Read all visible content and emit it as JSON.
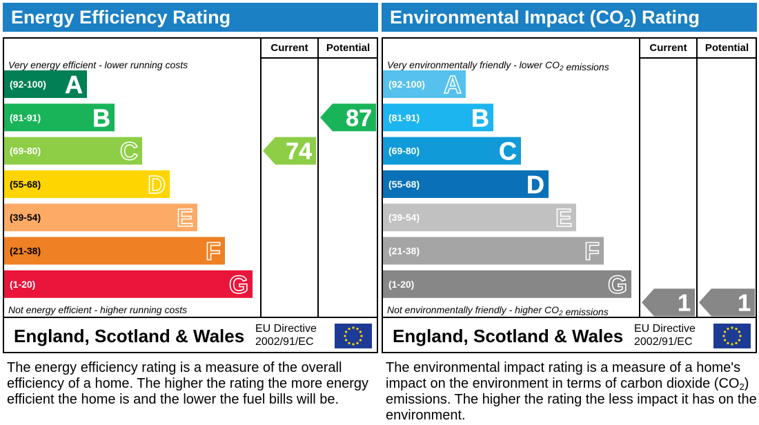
{
  "chart_data": [
    {
      "type": "bar",
      "title": "Energy Efficiency Rating",
      "columns": [
        "Current",
        "Potential"
      ],
      "top_note": "Very energy efficient - lower running costs",
      "bottom_note": "Not energy efficient - higher running costs",
      "categories": [
        "A",
        "B",
        "C",
        "D",
        "E",
        "F",
        "G"
      ],
      "ranges": [
        "(92-100)",
        "(81-91)",
        "(69-80)",
        "(55-68)",
        "(39-54)",
        "(21-38)",
        "(1-20)"
      ],
      "colors": [
        "#008054",
        "#19b459",
        "#8dce46",
        "#ffd500",
        "#fcaa65",
        "#ef8023",
        "#e9153b"
      ],
      "letter_style": [
        "solid",
        "solid",
        "outline",
        "outline",
        "outline",
        "outline",
        "outline"
      ],
      "current": {
        "value": 74,
        "band": "C"
      },
      "potential": {
        "value": 87,
        "band": "B"
      },
      "footer_label": "England, Scotland & Wales",
      "directive_line1": "EU Directive",
      "directive_line2": "2002/91/EC",
      "description": "The energy efficiency rating is a measure of the overall efficiency of a home. The higher the rating the more energy efficient the home is and the lower the fuel bills will be."
    },
    {
      "type": "bar",
      "title": "Environmental Impact (CO2) Rating",
      "columns": [
        "Current",
        "Potential"
      ],
      "top_note": "Very environmentally friendly - lower CO2 emissions",
      "bottom_note": "Not environmentally friendly - higher CO2 emissions",
      "categories": [
        "A",
        "B",
        "C",
        "D",
        "E",
        "F",
        "G"
      ],
      "ranges": [
        "(92-100)",
        "(81-91)",
        "(69-80)",
        "(55-68)",
        "(39-54)",
        "(21-38)",
        "(1-20)"
      ],
      "colors": [
        "#55c1ec",
        "#1cb5f0",
        "#109ad8",
        "#0a71b8",
        "#c1c1c1",
        "#a5a5a5",
        "#878787"
      ],
      "letter_style": [
        "outline",
        "solid",
        "solid",
        "solid",
        "outline",
        "outline",
        "outline"
      ],
      "current": {
        "value": 1,
        "band": "G"
      },
      "potential": {
        "value": 1,
        "band": "G"
      },
      "footer_label": "England, Scotland & Wales",
      "directive_line1": "EU Directive",
      "directive_line2": "2002/91/EC",
      "description": "The environmental impact rating is a measure of a home's impact on the environment in terms of carbon dioxide (CO2) emissions. The higher the rating the less impact it has on the environment."
    }
  ]
}
